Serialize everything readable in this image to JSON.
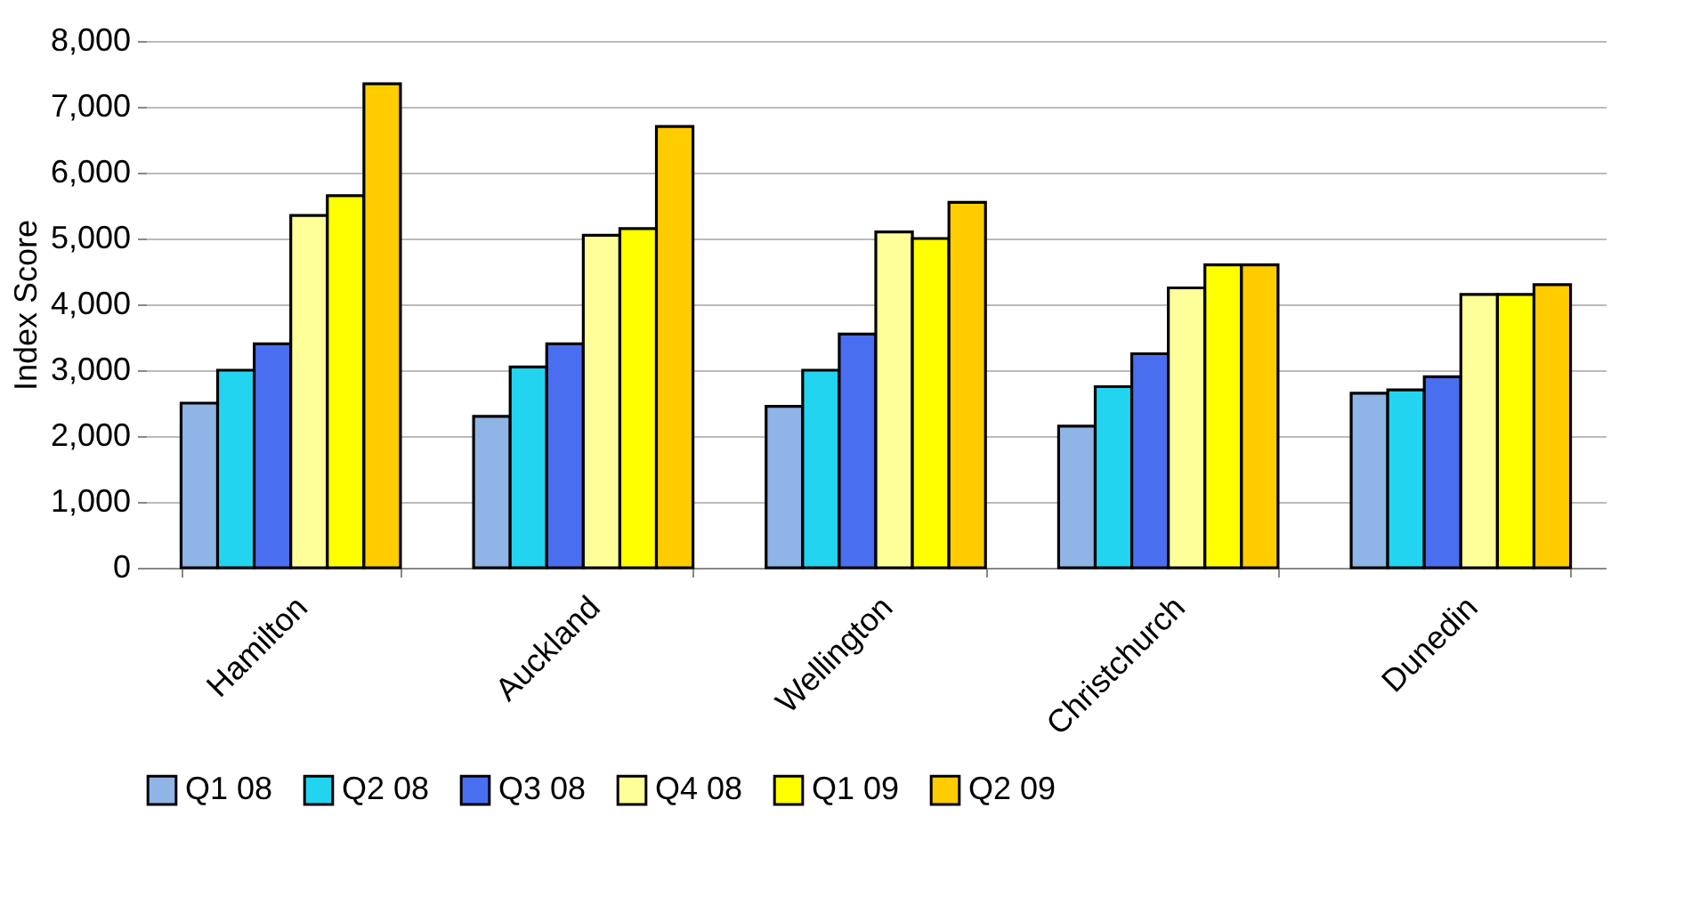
{
  "chart_data": {
    "type": "bar",
    "ylabel": "Index Score",
    "categories": [
      "Hamilton",
      "Auckland",
      "Wellington",
      "Christchurch",
      "Dunedin"
    ],
    "series": [
      {
        "name": "Q1 08",
        "color": "#8fb4e6",
        "values": [
          2500,
          2300,
          2450,
          2150,
          2650
        ]
      },
      {
        "name": "Q2 08",
        "color": "#22d4f0",
        "values": [
          3000,
          3050,
          3000,
          2750,
          2700
        ]
      },
      {
        "name": "Q3 08",
        "color": "#4a6ef0",
        "values": [
          3400,
          3400,
          3550,
          3250,
          2900
        ]
      },
      {
        "name": "Q4 08",
        "color": "#ffff99",
        "values": [
          5350,
          5050,
          5100,
          4250,
          4150
        ]
      },
      {
        "name": "Q1 09",
        "color": "#ffff00",
        "values": [
          5650,
          5150,
          5000,
          4600,
          4150
        ]
      },
      {
        "name": "Q2 09",
        "color": "#ffcc00",
        "values": [
          7350,
          6700,
          5550,
          4600,
          4300
        ]
      }
    ],
    "ylim": [
      0,
      8000
    ],
    "yticks": [
      {
        "value": 0,
        "label": "0"
      },
      {
        "value": 1000,
        "label": "1,000"
      },
      {
        "value": 2000,
        "label": "2,000"
      },
      {
        "value": 3000,
        "label": "3,000"
      },
      {
        "value": 4000,
        "label": "4,000"
      },
      {
        "value": 5000,
        "label": "5,000"
      },
      {
        "value": 6000,
        "label": "6,000"
      },
      {
        "value": 7000,
        "label": "7,000"
      },
      {
        "value": 8000,
        "label": "8,000"
      }
    ],
    "grid": "y",
    "legend": "bottom"
  }
}
